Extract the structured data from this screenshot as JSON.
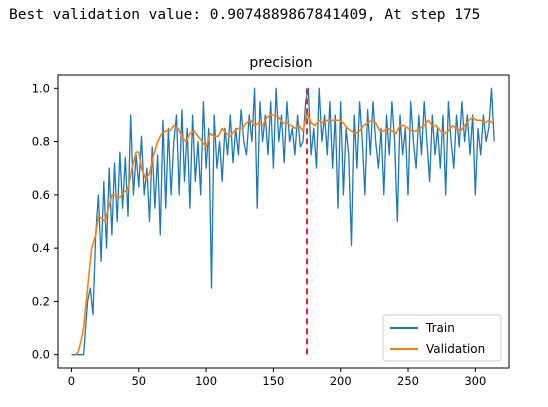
{
  "output": {
    "headline": "Best validation value: 0.9074889867841409, At step 175"
  },
  "chart_data": {
    "type": "line",
    "title": "precision",
    "xlabel": "",
    "ylabel": "",
    "xlim": [
      -10,
      325
    ],
    "ylim": [
      -0.05,
      1.05
    ],
    "xticks": [
      0,
      50,
      100,
      150,
      200,
      250,
      300
    ],
    "yticks": [
      0.0,
      0.2,
      0.4,
      0.6,
      0.8,
      1.0
    ],
    "x_tick_labels": [
      "0",
      "50",
      "100",
      "150",
      "200",
      "250",
      "300"
    ],
    "y_tick_labels": [
      "0.0",
      "0.2",
      "0.4",
      "0.6",
      "0.8",
      "1.0"
    ],
    "grid": false,
    "legend_position": "lower-right",
    "best_step_marker": {
      "x": 175,
      "color": "#d62728",
      "style": "dashed"
    },
    "series": [
      {
        "name": "Train",
        "color": "#1f77b4",
        "points": [
          [
            0,
            0
          ],
          [
            3,
            0
          ],
          [
            6,
            0
          ],
          [
            9,
            0
          ],
          [
            12,
            0.2
          ],
          [
            14,
            0.25
          ],
          [
            16,
            0.15
          ],
          [
            18,
            0.45
          ],
          [
            20,
            0.6
          ],
          [
            22,
            0.35
          ],
          [
            24,
            0.65
          ],
          [
            26,
            0.4
          ],
          [
            28,
            0.7
          ],
          [
            30,
            0.45
          ],
          [
            32,
            0.72
          ],
          [
            34,
            0.5
          ],
          [
            36,
            0.76
          ],
          [
            38,
            0.55
          ],
          [
            40,
            0.74
          ],
          [
            42,
            0.52
          ],
          [
            44,
            0.9
          ],
          [
            46,
            0.6
          ],
          [
            48,
            0.75
          ],
          [
            50,
            0.63
          ],
          [
            52,
            0.82
          ],
          [
            54,
            0.6
          ],
          [
            56,
            0.7
          ],
          [
            58,
            0.5
          ],
          [
            60,
            0.78
          ],
          [
            62,
            0.55
          ],
          [
            64,
            0.75
          ],
          [
            66,
            0.45
          ],
          [
            68,
            0.88
          ],
          [
            70,
            0.55
          ],
          [
            72,
            0.85
          ],
          [
            74,
            0.6
          ],
          [
            76,
            0.8
          ],
          [
            78,
            0.9
          ],
          [
            80,
            0.6
          ],
          [
            82,
            0.92
          ],
          [
            84,
            0.65
          ],
          [
            86,
            0.85
          ],
          [
            88,
            0.55
          ],
          [
            90,
            0.9
          ],
          [
            92,
            0.65
          ],
          [
            94,
            0.8
          ],
          [
            96,
            0.6
          ],
          [
            98,
            0.95
          ],
          [
            100,
            0.7
          ],
          [
            102,
            0.85
          ],
          [
            104,
            0.25
          ],
          [
            106,
            0.9
          ],
          [
            108,
            0.7
          ],
          [
            110,
            0.8
          ],
          [
            112,
            0.65
          ],
          [
            114,
            0.85
          ],
          [
            116,
            0.75
          ],
          [
            118,
            0.9
          ],
          [
            120,
            0.72
          ],
          [
            122,
            0.85
          ],
          [
            124,
            0.75
          ],
          [
            126,
            0.92
          ],
          [
            128,
            0.8
          ],
          [
            130,
            0.75
          ],
          [
            132,
            0.9
          ],
          [
            134,
            0.8
          ],
          [
            136,
            1.0
          ],
          [
            138,
            0.55
          ],
          [
            140,
            0.95
          ],
          [
            142,
            0.8
          ],
          [
            144,
            0.9
          ],
          [
            146,
            0.75
          ],
          [
            148,
            0.95
          ],
          [
            150,
            0.7
          ],
          [
            152,
            1.0
          ],
          [
            154,
            0.8
          ],
          [
            156,
            0.9
          ],
          [
            158,
            0.72
          ],
          [
            160,
            0.95
          ],
          [
            162,
            0.8
          ],
          [
            164,
            0.85
          ],
          [
            166,
            0.75
          ],
          [
            168,
            0.9
          ],
          [
            170,
            0.78
          ],
          [
            172,
            0.8
          ],
          [
            174,
            0.95
          ],
          [
            176,
            1.0
          ],
          [
            178,
            0.75
          ],
          [
            180,
            0.85
          ],
          [
            182,
            0.7
          ],
          [
            184,
            1.0
          ],
          [
            186,
            0.8
          ],
          [
            188,
            0.9
          ],
          [
            190,
            0.75
          ],
          [
            192,
            0.95
          ],
          [
            194,
            0.7
          ],
          [
            196,
            0.9
          ],
          [
            198,
            0.55
          ],
          [
            200,
            0.95
          ],
          [
            202,
            0.6
          ],
          [
            204,
            0.85
          ],
          [
            206,
            0.75
          ],
          [
            208,
            0.41
          ],
          [
            210,
            0.9
          ],
          [
            212,
            0.7
          ],
          [
            214,
            0.95
          ],
          [
            216,
            0.8
          ],
          [
            218,
            0.6
          ],
          [
            220,
            0.92
          ],
          [
            222,
            0.75
          ],
          [
            224,
            0.95
          ],
          [
            226,
            0.8
          ],
          [
            228,
            0.7
          ],
          [
            230,
            0.85
          ],
          [
            232,
            0.6
          ],
          [
            234,
            0.9
          ],
          [
            236,
            0.75
          ],
          [
            238,
            0.95
          ],
          [
            240,
            0.8
          ],
          [
            242,
            0.5
          ],
          [
            244,
            0.9
          ],
          [
            246,
            0.75
          ],
          [
            248,
            0.85
          ],
          [
            250,
            0.6
          ],
          [
            252,
            0.95
          ],
          [
            254,
            0.8
          ],
          [
            256,
            0.7
          ],
          [
            258,
            0.9
          ],
          [
            260,
            0.75
          ],
          [
            262,
            0.95
          ],
          [
            264,
            0.8
          ],
          [
            266,
            0.65
          ],
          [
            268,
            0.9
          ],
          [
            270,
            0.75
          ],
          [
            272,
            0.85
          ],
          [
            274,
            0.7
          ],
          [
            276,
            0.9
          ],
          [
            278,
            0.6
          ],
          [
            280,
            0.95
          ],
          [
            282,
            0.8
          ],
          [
            284,
            0.7
          ],
          [
            286,
            0.9
          ],
          [
            288,
            0.78
          ],
          [
            290,
            0.95
          ],
          [
            292,
            0.8
          ],
          [
            294,
            0.9
          ],
          [
            296,
            0.75
          ],
          [
            298,
            0.9
          ],
          [
            300,
            0.6
          ],
          [
            302,
            0.85
          ],
          [
            304,
            0.75
          ],
          [
            306,
            0.9
          ],
          [
            308,
            0.8
          ],
          [
            310,
            0.85
          ],
          [
            312,
            1.0
          ],
          [
            314,
            0.8
          ]
        ]
      },
      {
        "name": "Validation",
        "color": "#ff7f0e",
        "points": [
          [
            3,
            0
          ],
          [
            5,
            0.01
          ],
          [
            7,
            0.05
          ],
          [
            9,
            0.1
          ],
          [
            12,
            0.25
          ],
          [
            15,
            0.4
          ],
          [
            18,
            0.45
          ],
          [
            20,
            0.52
          ],
          [
            23,
            0.51
          ],
          [
            25,
            0.5
          ],
          [
            27,
            0.54
          ],
          [
            30,
            0.6
          ],
          [
            33,
            0.6
          ],
          [
            36,
            0.59
          ],
          [
            39,
            0.61
          ],
          [
            42,
            0.62
          ],
          [
            45,
            0.7
          ],
          [
            48,
            0.76
          ],
          [
            50,
            0.76
          ],
          [
            52,
            0.7
          ],
          [
            55,
            0.66
          ],
          [
            58,
            0.68
          ],
          [
            61,
            0.75
          ],
          [
            64,
            0.8
          ],
          [
            67,
            0.83
          ],
          [
            70,
            0.84
          ],
          [
            73,
            0.84
          ],
          [
            76,
            0.86
          ],
          [
            79,
            0.85
          ],
          [
            82,
            0.82
          ],
          [
            85,
            0.8
          ],
          [
            88,
            0.83
          ],
          [
            91,
            0.84
          ],
          [
            94,
            0.82
          ],
          [
            97,
            0.8
          ],
          [
            100,
            0.78
          ],
          [
            103,
            0.83
          ],
          [
            106,
            0.82
          ],
          [
            109,
            0.82
          ],
          [
            112,
            0.85
          ],
          [
            115,
            0.83
          ],
          [
            118,
            0.82
          ],
          [
            121,
            0.84
          ],
          [
            124,
            0.85
          ],
          [
            127,
            0.85
          ],
          [
            130,
            0.87
          ],
          [
            133,
            0.88
          ],
          [
            136,
            0.86
          ],
          [
            139,
            0.87
          ],
          [
            142,
            0.86
          ],
          [
            145,
            0.89
          ],
          [
            148,
            0.9
          ],
          [
            151,
            0.9
          ],
          [
            154,
            0.89
          ],
          [
            157,
            0.87
          ],
          [
            160,
            0.87
          ],
          [
            163,
            0.86
          ],
          [
            166,
            0.85
          ],
          [
            169,
            0.86
          ],
          [
            172,
            0.84
          ],
          [
            175,
            0.907
          ],
          [
            178,
            0.87
          ],
          [
            181,
            0.86
          ],
          [
            184,
            0.88
          ],
          [
            187,
            0.87
          ],
          [
            190,
            0.88
          ],
          [
            193,
            0.88
          ],
          [
            196,
            0.88
          ],
          [
            199,
            0.88
          ],
          [
            202,
            0.87
          ],
          [
            205,
            0.85
          ],
          [
            208,
            0.84
          ],
          [
            211,
            0.83
          ],
          [
            214,
            0.84
          ],
          [
            217,
            0.86
          ],
          [
            220,
            0.87
          ],
          [
            223,
            0.88
          ],
          [
            226,
            0.87
          ],
          [
            229,
            0.84
          ],
          [
            232,
            0.84
          ],
          [
            235,
            0.85
          ],
          [
            238,
            0.84
          ],
          [
            241,
            0.83
          ],
          [
            244,
            0.86
          ],
          [
            247,
            0.86
          ],
          [
            250,
            0.85
          ],
          [
            253,
            0.84
          ],
          [
            256,
            0.84
          ],
          [
            259,
            0.85
          ],
          [
            262,
            0.86
          ],
          [
            265,
            0.88
          ],
          [
            268,
            0.86
          ],
          [
            271,
            0.86
          ],
          [
            274,
            0.84
          ],
          [
            277,
            0.83
          ],
          [
            280,
            0.84
          ],
          [
            283,
            0.86
          ],
          [
            286,
            0.85
          ],
          [
            289,
            0.84
          ],
          [
            292,
            0.86
          ],
          [
            295,
            0.88
          ],
          [
            298,
            0.89
          ],
          [
            301,
            0.88
          ],
          [
            304,
            0.88
          ],
          [
            307,
            0.87
          ],
          [
            310,
            0.88
          ],
          [
            313,
            0.87
          ]
        ]
      }
    ]
  }
}
